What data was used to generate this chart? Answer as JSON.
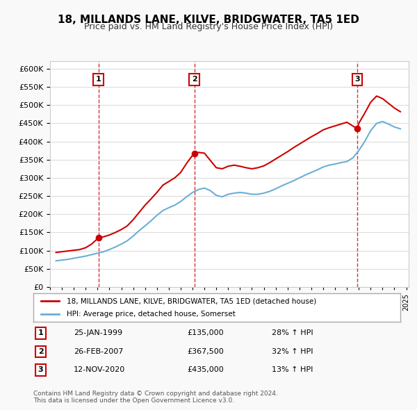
{
  "title": "18, MILLANDS LANE, KILVE, BRIDGWATER, TA5 1ED",
  "subtitle": "Price paid vs. HM Land Registry's House Price Index (HPI)",
  "ylabel": "",
  "ylim": [
    0,
    620000
  ],
  "yticks": [
    0,
    50000,
    100000,
    150000,
    200000,
    250000,
    300000,
    350000,
    400000,
    450000,
    500000,
    550000,
    600000
  ],
  "bg_color": "#f9f9f9",
  "plot_bg": "#ffffff",
  "legend_label_red": "18, MILLANDS LANE, KILVE, BRIDGWATER, TA5 1ED (detached house)",
  "legend_label_blue": "HPI: Average price, detached house, Somerset",
  "transactions": [
    {
      "num": 1,
      "date": "25-JAN-1999",
      "price": 135000,
      "pct": "28%",
      "dir": "↑",
      "x": 1999.07
    },
    {
      "num": 2,
      "date": "26-FEB-2007",
      "price": 367500,
      "pct": "32%",
      "dir": "↑",
      "x": 2007.15
    },
    {
      "num": 3,
      "date": "12-NOV-2020",
      "price": 435000,
      "pct": "13%",
      "dir": "↑",
      "x": 2020.87
    }
  ],
  "footer1": "Contains HM Land Registry data © Crown copyright and database right 2024.",
  "footer2": "This data is licensed under the Open Government Licence v3.0.",
  "hpi_color": "#6baed6",
  "price_color": "#cc0000",
  "dashed_color": "#cc0000",
  "hpi_x": [
    1995.5,
    1996.0,
    1996.5,
    1997.0,
    1997.5,
    1998.0,
    1998.5,
    1999.0,
    1999.5,
    2000.0,
    2000.5,
    2001.0,
    2001.5,
    2002.0,
    2002.5,
    2003.0,
    2003.5,
    2004.0,
    2004.5,
    2005.0,
    2005.5,
    2006.0,
    2006.5,
    2007.0,
    2007.5,
    2008.0,
    2008.5,
    2009.0,
    2009.5,
    2010.0,
    2010.5,
    2011.0,
    2011.5,
    2012.0,
    2012.5,
    2013.0,
    2013.5,
    2014.0,
    2014.5,
    2015.0,
    2015.5,
    2016.0,
    2016.5,
    2017.0,
    2017.5,
    2018.0,
    2018.5,
    2019.0,
    2019.5,
    2020.0,
    2020.5,
    2021.0,
    2021.5,
    2022.0,
    2022.5,
    2023.0,
    2023.5,
    2024.0,
    2024.5
  ],
  "hpi_y": [
    72000,
    74000,
    76000,
    79000,
    82000,
    85000,
    89000,
    93000,
    97000,
    103000,
    110000,
    118000,
    127000,
    140000,
    155000,
    168000,
    182000,
    197000,
    210000,
    218000,
    225000,
    235000,
    248000,
    260000,
    268000,
    272000,
    265000,
    252000,
    248000,
    255000,
    258000,
    260000,
    258000,
    255000,
    255000,
    258000,
    263000,
    270000,
    278000,
    285000,
    292000,
    300000,
    308000,
    315000,
    322000,
    330000,
    335000,
    338000,
    342000,
    345000,
    355000,
    375000,
    400000,
    430000,
    450000,
    455000,
    448000,
    440000,
    435000
  ],
  "price_x": [
    1995.5,
    1996.0,
    1996.5,
    1997.0,
    1997.5,
    1998.0,
    1998.5,
    1999.07,
    1999.5,
    2000.0,
    2000.5,
    2001.0,
    2001.5,
    2002.0,
    2002.5,
    2003.0,
    2003.5,
    2004.0,
    2004.5,
    2005.0,
    2005.5,
    2006.0,
    2006.5,
    2007.0,
    2007.15,
    2007.5,
    2008.0,
    2008.5,
    2009.0,
    2009.5,
    2010.0,
    2010.5,
    2011.0,
    2011.5,
    2012.0,
    2012.5,
    2013.0,
    2013.5,
    2014.0,
    2014.5,
    2015.0,
    2015.5,
    2016.0,
    2016.5,
    2017.0,
    2017.5,
    2018.0,
    2018.5,
    2019.0,
    2019.5,
    2020.0,
    2020.87,
    2021.0,
    2021.5,
    2022.0,
    2022.5,
    2023.0,
    2023.5,
    2024.0,
    2024.5
  ],
  "price_y": [
    95000,
    97000,
    99000,
    101000,
    103000,
    108000,
    118000,
    135000,
    138000,
    143000,
    150000,
    158000,
    168000,
    185000,
    205000,
    225000,
    242000,
    260000,
    280000,
    290000,
    300000,
    315000,
    340000,
    362000,
    367500,
    370000,
    368000,
    348000,
    328000,
    325000,
    332000,
    335000,
    332000,
    328000,
    325000,
    328000,
    333000,
    342000,
    352000,
    362000,
    372000,
    383000,
    393000,
    403000,
    413000,
    422000,
    432000,
    438000,
    443000,
    448000,
    453000,
    435000,
    450000,
    478000,
    508000,
    525000,
    518000,
    505000,
    492000,
    482000
  ]
}
